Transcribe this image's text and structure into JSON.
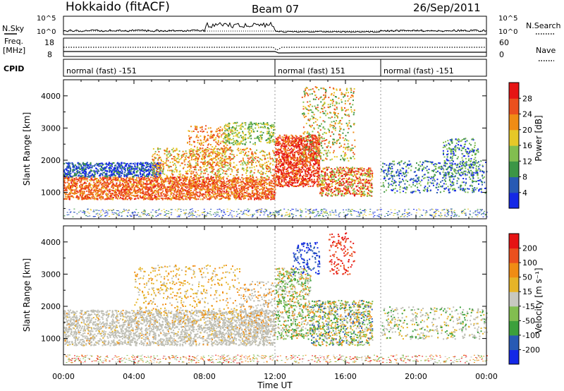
{
  "header": {
    "station": "Hokkaido (fitACF)",
    "beam": "Beam 07",
    "date": "26/Sep/2011"
  },
  "top_panels": {
    "nsky_label": "N.Sky",
    "nsky_ticks": [
      "10^5",
      "10^0"
    ],
    "nsearch_label": "N.Search",
    "nsearch_ticks": [
      "10^5",
      "10^0"
    ],
    "freq_label_line1": "Freq.",
    "freq_label_line2": "[MHz]",
    "freq_ticks": [
      "18",
      "8"
    ],
    "nave_label": "Nave",
    "nave_ticks": [
      "60",
      "0"
    ],
    "cpid_label": "CPID",
    "cpid_segments": [
      {
        "start_h": 0,
        "end_h": 12,
        "text": "normal (fast) -151"
      },
      {
        "start_h": 12,
        "end_h": 18,
        "text": "normal (fast) 151"
      },
      {
        "start_h": 18,
        "end_h": 24,
        "text": "normal (fast) -151"
      }
    ]
  },
  "colors": {
    "power_scale": [
      "#1428e6",
      "#285ab4",
      "#3c9646",
      "#82be50",
      "#e6c828",
      "#f08c14",
      "#eb501e",
      "#e61414"
    ],
    "velocity_scale": [
      "#e61414",
      "#eb501e",
      "#f08c14",
      "#e6b428",
      "#c8c8c0",
      "#82be50",
      "#3ca03c",
      "#285ab4",
      "#1428e6"
    ],
    "ground_scatter": "#bebeb4"
  },
  "chart_data": [
    {
      "type": "heatmap",
      "name": "power",
      "ylabel": "Slant Range [km]",
      "xlabel": "Time UT",
      "x_ticks": [
        "00:00",
        "04:00",
        "08:00",
        "12:00",
        "16:00",
        "20:00",
        "00:00"
      ],
      "x_range_hours": [
        0,
        24
      ],
      "y_ticks": [
        1000,
        2000,
        3000,
        4000
      ],
      "ylim": [
        180,
        4500
      ],
      "colorbar_label": "Power [dB]",
      "colorbar_ticks": [
        4,
        8,
        12,
        16,
        20,
        24,
        28
      ],
      "colorbar_range": [
        0,
        32
      ]
    },
    {
      "type": "heatmap",
      "name": "velocity",
      "ylabel": "Slant Range [km]",
      "xlabel": "Time UT",
      "x_ticks": [
        "00:00",
        "04:00",
        "08:00",
        "12:00",
        "16:00",
        "20:00",
        "00:00"
      ],
      "x_range_hours": [
        0,
        24
      ],
      "y_ticks": [
        1000,
        2000,
        3000,
        4000
      ],
      "ylim": [
        180,
        4500
      ],
      "colorbar_label": "Velocity [m s⁻¹]",
      "colorbar_ticks": [
        200,
        100,
        50,
        15,
        -15,
        -50,
        -100,
        -200
      ]
    }
  ]
}
